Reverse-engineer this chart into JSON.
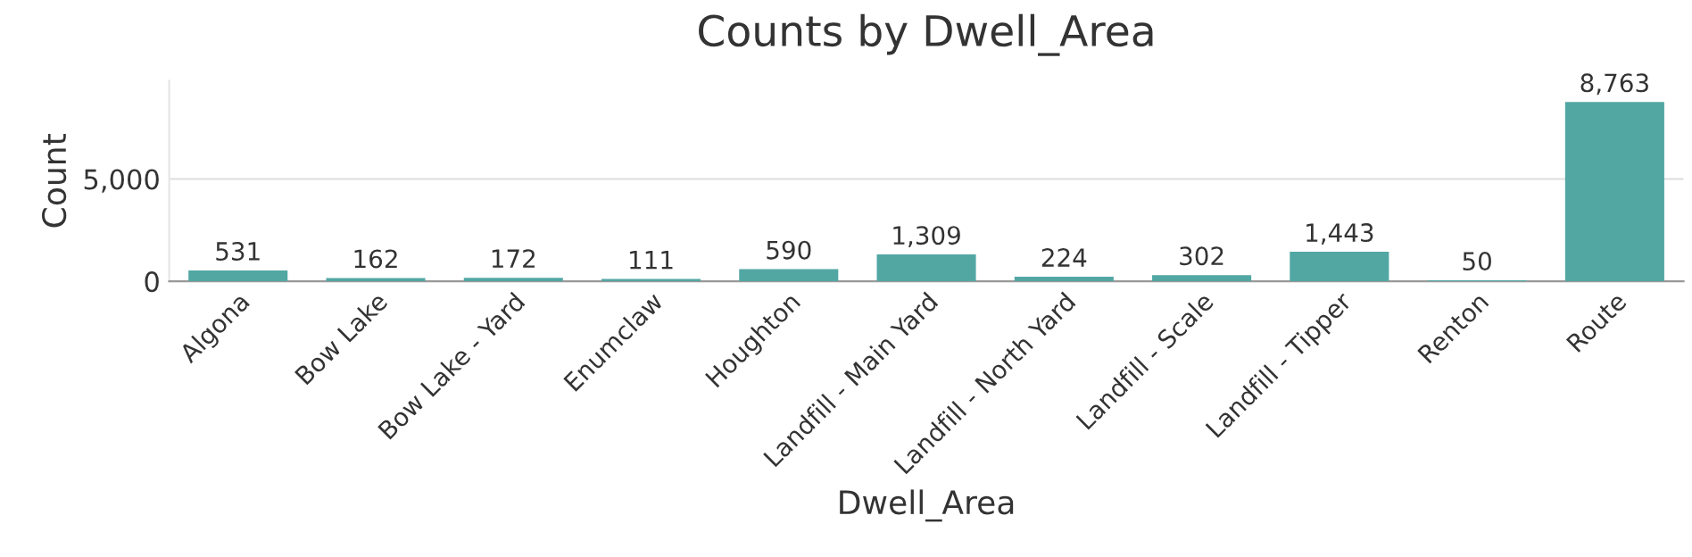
{
  "chart_data": {
    "type": "bar",
    "title": "Counts by Dwell_Area",
    "xlabel": "Dwell_Area",
    "ylabel": "Count",
    "categories": [
      "Algona",
      "Bow Lake",
      "Bow Lake - Yard",
      "Enumclaw",
      "Houghton",
      "Landfill - Main Yard",
      "Landfill - North Yard",
      "Landfill - Scale",
      "Landfill - Tipper",
      "Renton",
      "Route"
    ],
    "values": [
      531,
      162,
      172,
      111,
      590,
      1309,
      224,
      302,
      1443,
      50,
      8763
    ],
    "value_labels": [
      "531",
      "162",
      "172",
      "111",
      "590",
      "1,309",
      "224",
      "302",
      "1,443",
      "50",
      "8,763"
    ],
    "color": "#52a7a3",
    "yticks": [
      0,
      {
        "value": 5000,
        "label": "5,000"
      }
    ],
    "ylim": [
      0,
      9800
    ],
    "grid": "y",
    "legend": false
  }
}
